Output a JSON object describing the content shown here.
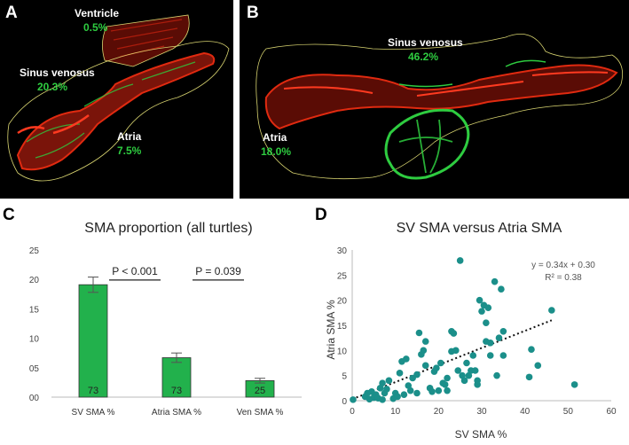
{
  "panel_a": {
    "label": "A",
    "regions": [
      {
        "name": "Ventricle",
        "pct": "0.5%"
      },
      {
        "name": "Sinus venosus",
        "pct": "20.3%"
      },
      {
        "name": "Atria",
        "pct": "7.5%"
      }
    ]
  },
  "panel_b": {
    "label": "B",
    "regions": [
      {
        "name": "Sinus venosus",
        "pct": "46.2%"
      },
      {
        "name": "Atria",
        "pct": "18.0%"
      }
    ]
  },
  "panel_c": {
    "label": "C"
  },
  "panel_d": {
    "label": "D"
  },
  "colors": {
    "bar": "#22b14c",
    "scatter": "#1b8f8a",
    "fluor_red": "#e02a10",
    "fluor_green": "#2ecc40"
  },
  "chart_data": [
    {
      "type": "bar",
      "title": "SMA proportion (all turtles)",
      "categories": [
        "SV SMA %",
        "Atria SMA %",
        "Ven SMA %"
      ],
      "values": [
        19.1,
        6.7,
        2.8
      ],
      "errors": [
        1.3,
        0.8,
        0.4
      ],
      "bar_labels": [
        "73",
        "73",
        "25"
      ],
      "ylim": [
        0,
        25
      ],
      "yticks": [
        "0",
        "5",
        "10",
        "15",
        "20",
        "25"
      ],
      "yticks_display": [
        "00",
        "05",
        "10",
        "15",
        "20",
        "25"
      ],
      "significance": [
        {
          "from": 0,
          "to": 1,
          "text": "P < 0.001"
        },
        {
          "from": 1,
          "to": 2,
          "text": "P = 0.039"
        }
      ],
      "grid": false,
      "legend": "none"
    },
    {
      "type": "scatter",
      "title": "SV SMA versus Atria SMA",
      "xlabel": "SV SMA %",
      "ylabel": "Atria SMA %",
      "xlim": [
        0,
        60
      ],
      "ylim": [
        0,
        30
      ],
      "xticks": [
        0,
        10,
        20,
        30,
        40,
        50,
        60
      ],
      "yticks": [
        0,
        5,
        10,
        15,
        20,
        25,
        30
      ],
      "trendline": {
        "slope": 0.34,
        "intercept": 0.3,
        "x_range": [
          0,
          46.2
        ],
        "style": "dotted"
      },
      "equation": "y = 0.34x + 0.30",
      "r_squared": "R² = 0.38",
      "grid": false,
      "legend": "none",
      "points": [
        [
          0.2,
          0.2
        ],
        [
          3,
          0.8
        ],
        [
          3.5,
          1.5
        ],
        [
          4,
          0.3
        ],
        [
          4.5,
          1.8
        ],
        [
          5,
          0.6
        ],
        [
          5.5,
          1.2
        ],
        [
          6,
          0.5
        ],
        [
          6.5,
          2.5
        ],
        [
          7,
          0.2
        ],
        [
          7,
          3.5
        ],
        [
          7.5,
          1.5
        ],
        [
          8,
          2.3
        ],
        [
          8.5,
          4
        ],
        [
          9.5,
          0.4
        ],
        [
          10,
          1.5
        ],
        [
          10.5,
          0.8
        ],
        [
          11,
          5.5
        ],
        [
          11.5,
          7.8
        ],
        [
          12,
          1.2
        ],
        [
          12.5,
          8.3
        ],
        [
          13,
          3
        ],
        [
          13.5,
          2
        ],
        [
          14,
          4.5
        ],
        [
          15,
          5.2
        ],
        [
          15.5,
          13.5
        ],
        [
          15,
          1.5
        ],
        [
          16,
          9.2
        ],
        [
          16.5,
          10
        ],
        [
          17,
          11.8
        ],
        [
          17,
          7
        ],
        [
          18,
          2.5
        ],
        [
          18.5,
          1.8
        ],
        [
          19,
          5.8
        ],
        [
          19.5,
          6.5
        ],
        [
          20,
          2
        ],
        [
          20.5,
          7.5
        ],
        [
          21,
          3.5
        ],
        [
          21.5,
          3.2
        ],
        [
          22,
          4.5
        ],
        [
          22,
          2
        ],
        [
          23,
          13.8
        ],
        [
          23,
          9.8
        ],
        [
          23.5,
          13.4
        ],
        [
          24,
          10
        ],
        [
          24.5,
          6
        ],
        [
          25,
          27.9
        ],
        [
          25.5,
          5
        ],
        [
          26,
          4
        ],
        [
          26.5,
          7.5
        ],
        [
          27,
          5
        ],
        [
          27.5,
          6
        ],
        [
          28,
          9
        ],
        [
          28.5,
          6
        ],
        [
          29,
          4
        ],
        [
          29,
          3.2
        ],
        [
          29.5,
          20
        ],
        [
          30,
          17.8
        ],
        [
          30.5,
          19
        ],
        [
          31,
          11.8
        ],
        [
          31,
          15.5
        ],
        [
          31.5,
          18.5
        ],
        [
          32,
          11.5
        ],
        [
          32,
          9
        ],
        [
          33,
          23.7
        ],
        [
          33.5,
          5
        ],
        [
          34,
          12.5
        ],
        [
          34.5,
          22.2
        ],
        [
          35,
          9
        ],
        [
          35,
          13.8
        ],
        [
          41,
          4.7
        ],
        [
          41.5,
          10.2
        ],
        [
          43,
          7
        ],
        [
          46.2,
          18
        ],
        [
          51.5,
          3.2
        ]
      ]
    }
  ]
}
